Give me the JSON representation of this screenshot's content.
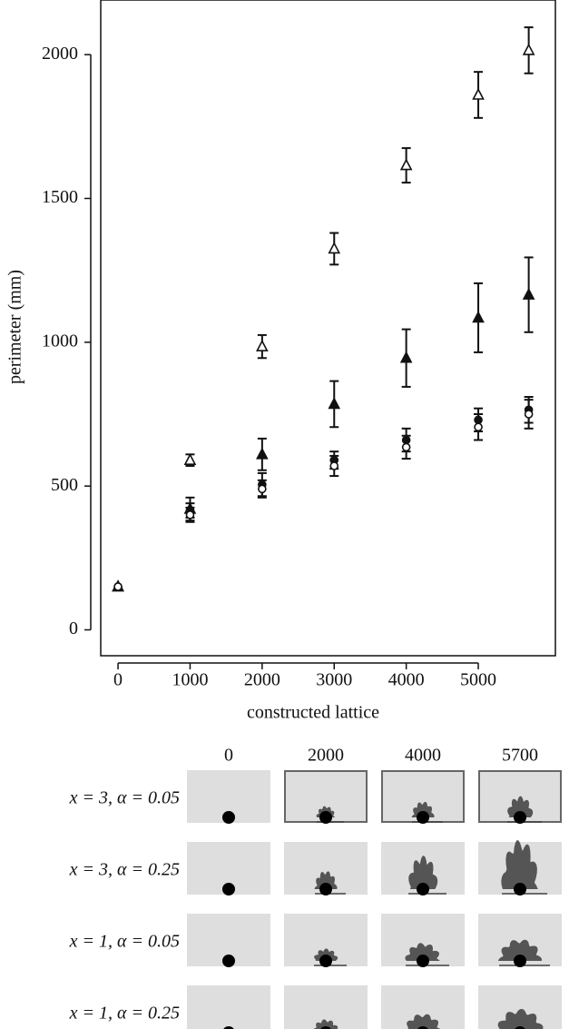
{
  "chart_data": {
    "type": "scatter",
    "x_label": "constructed lattice",
    "y_label": "perimeter (mm)",
    "x": [
      0,
      1000,
      2000,
      3000,
      4000,
      5000,
      5700
    ],
    "xlim": [
      -240,
      6070
    ],
    "xticks": [
      0,
      1000,
      2000,
      3000,
      4000,
      5000
    ],
    "ylim": [
      -90,
      2190
    ],
    "yticks": [
      0,
      500,
      1000,
      1500,
      2000
    ],
    "series": [
      {
        "marker": "triangle",
        "filled": false,
        "color": "#111111",
        "values": [
          150,
          590,
          985,
          1325,
          1615,
          1860,
          2015
        ],
        "errors": [
          0,
          20,
          40,
          55,
          60,
          80,
          80
        ]
      },
      {
        "marker": "triangle",
        "filled": true,
        "color": "#111111",
        "values": [
          150,
          420,
          610,
          785,
          945,
          1085,
          1165
        ],
        "errors": [
          0,
          40,
          55,
          80,
          100,
          120,
          130
        ]
      },
      {
        "marker": "circle",
        "filled": true,
        "color": "#111111",
        "values": [
          150,
          415,
          505,
          590,
          660,
          730,
          765
        ],
        "errors": [
          0,
          25,
          40,
          30,
          40,
          40,
          45
        ]
      },
      {
        "marker": "circle",
        "filled": false,
        "color": "#111111",
        "values": [
          150,
          400,
          490,
          570,
          635,
          705,
          750
        ],
        "errors": [
          0,
          25,
          30,
          35,
          40,
          45,
          50
        ]
      }
    ]
  },
  "panels": {
    "columns": [
      "0",
      "2000",
      "4000",
      "5700"
    ],
    "rows": [
      "x = 3, α = 0.05",
      "x = 3, α = 0.25",
      "x = 1, α = 0.05",
      "x = 1, α = 0.25"
    ]
  }
}
